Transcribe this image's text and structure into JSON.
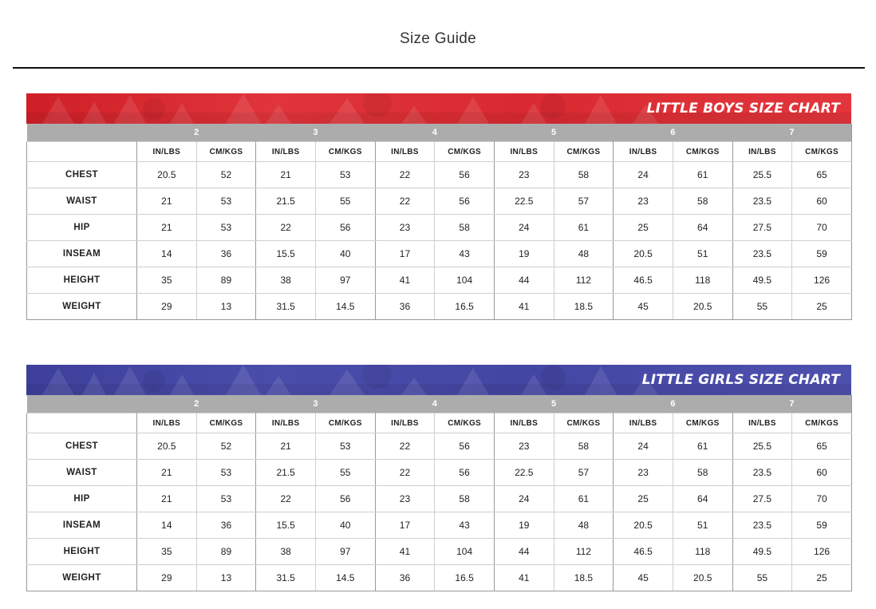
{
  "page": {
    "title": "Size Guide"
  },
  "charts": [
    {
      "title": "LITTLE BOYS SIZE CHART",
      "accent": "#d92a31",
      "sizes": [
        "2",
        "3",
        "4",
        "5",
        "6",
        "7"
      ],
      "units": [
        "IN/LBS",
        "CM/KGS"
      ],
      "rows": [
        {
          "label": "CHEST",
          "values": [
            "20.5",
            "52",
            "21",
            "53",
            "22",
            "56",
            "23",
            "58",
            "24",
            "61",
            "25.5",
            "65"
          ]
        },
        {
          "label": "WAIST",
          "values": [
            "21",
            "53",
            "21.5",
            "55",
            "22",
            "56",
            "22.5",
            "57",
            "23",
            "58",
            "23.5",
            "60"
          ]
        },
        {
          "label": "HIP",
          "values": [
            "21",
            "53",
            "22",
            "56",
            "23",
            "58",
            "24",
            "61",
            "25",
            "64",
            "27.5",
            "70"
          ]
        },
        {
          "label": "INSEAM",
          "values": [
            "14",
            "36",
            "15.5",
            "40",
            "17",
            "43",
            "19",
            "48",
            "20.5",
            "51",
            "23.5",
            "59"
          ]
        },
        {
          "label": "HEIGHT",
          "values": [
            "35",
            "89",
            "38",
            "97",
            "41",
            "104",
            "44",
            "112",
            "46.5",
            "118",
            "49.5",
            "126"
          ]
        },
        {
          "label": "WEIGHT",
          "values": [
            "29",
            "13",
            "31.5",
            "14.5",
            "36",
            "16.5",
            "41",
            "18.5",
            "45",
            "20.5",
            "55",
            "25"
          ]
        }
      ]
    },
    {
      "title": "LITTLE GIRLS SIZE CHART",
      "accent": "#4446a3",
      "sizes": [
        "2",
        "3",
        "4",
        "5",
        "6",
        "7"
      ],
      "units": [
        "IN/LBS",
        "CM/KGS"
      ],
      "rows": [
        {
          "label": "CHEST",
          "values": [
            "20.5",
            "52",
            "21",
            "53",
            "22",
            "56",
            "23",
            "58",
            "24",
            "61",
            "25.5",
            "65"
          ]
        },
        {
          "label": "WAIST",
          "values": [
            "21",
            "53",
            "21.5",
            "55",
            "22",
            "56",
            "22.5",
            "57",
            "23",
            "58",
            "23.5",
            "60"
          ]
        },
        {
          "label": "HIP",
          "values": [
            "21",
            "53",
            "22",
            "56",
            "23",
            "58",
            "24",
            "61",
            "25",
            "64",
            "27.5",
            "70"
          ]
        },
        {
          "label": "INSEAM",
          "values": [
            "14",
            "36",
            "15.5",
            "40",
            "17",
            "43",
            "19",
            "48",
            "20.5",
            "51",
            "23.5",
            "59"
          ]
        },
        {
          "label": "HEIGHT",
          "values": [
            "35",
            "89",
            "38",
            "97",
            "41",
            "104",
            "44",
            "112",
            "46.5",
            "118",
            "49.5",
            "126"
          ]
        },
        {
          "label": "WEIGHT",
          "values": [
            "29",
            "13",
            "31.5",
            "14.5",
            "36",
            "16.5",
            "41",
            "18.5",
            "45",
            "20.5",
            "55",
            "25"
          ]
        }
      ]
    }
  ]
}
